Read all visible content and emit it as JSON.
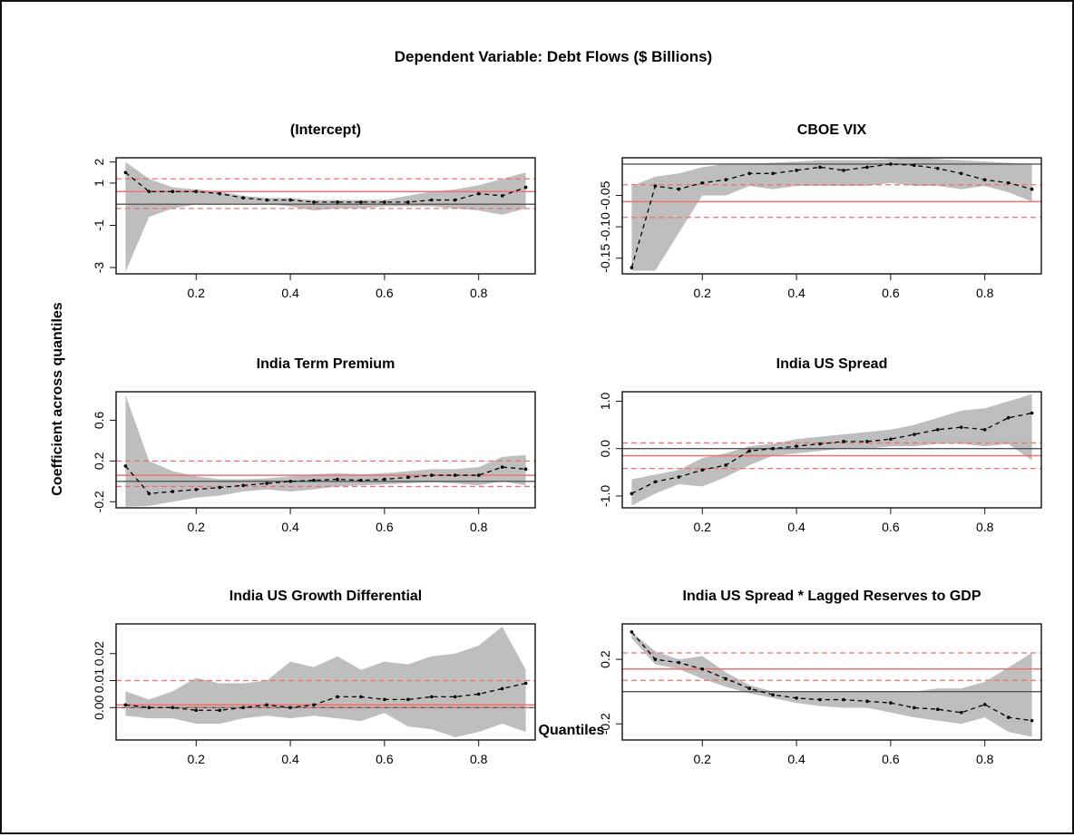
{
  "title": "Dependent Variable: Debt Flows ($ Billions)",
  "xlabel": "Quantiles",
  "ylabel": "Coefficient across quantiles",
  "colors": {
    "band": "#bebebe",
    "estimate": "#000000",
    "ols": "#f07070",
    "zero": "#555555",
    "frame": "#111111"
  },
  "chart_data": [
    {
      "type": "line",
      "title": "(Intercept)",
      "x": [
        0.05,
        0.1,
        0.15,
        0.2,
        0.25,
        0.3,
        0.35,
        0.4,
        0.45,
        0.5,
        0.55,
        0.6,
        0.65,
        0.7,
        0.75,
        0.8,
        0.85,
        0.9
      ],
      "series": [
        {
          "values": [
            1.5,
            0.6,
            0.6,
            0.6,
            0.5,
            0.3,
            0.2,
            0.2,
            0.1,
            0.1,
            0.1,
            0.1,
            0.1,
            0.2,
            0.2,
            0.5,
            0.4,
            0.8
          ]
        }
      ],
      "band_upper": [
        2.0,
        1.2,
        0.8,
        0.7,
        0.6,
        0.4,
        0.3,
        0.3,
        0.2,
        0.2,
        0.2,
        0.2,
        0.4,
        0.6,
        0.7,
        0.9,
        1.2,
        1.5
      ],
      "band_lower": [
        -3.2,
        -0.6,
        -0.2,
        0.0,
        0.0,
        0.0,
        0.0,
        -0.1,
        -0.3,
        -0.2,
        -0.2,
        -0.1,
        -0.1,
        -0.1,
        -0.2,
        -0.3,
        -0.5,
        -0.2
      ],
      "ols": 0.6,
      "ols_ci": [
        -0.2,
        1.2
      ],
      "ylim": [
        -3.3,
        2.2
      ],
      "yticks": [
        2,
        1,
        -1,
        -3
      ],
      "ytick_labels": [
        "2",
        "1",
        "-1",
        "-3"
      ],
      "xticks": [
        0.2,
        0.4,
        0.6,
        0.8
      ],
      "xtick_labels": [
        "0.2",
        "0.4",
        "0.6",
        "0.8"
      ]
    },
    {
      "type": "line",
      "title": "CBOE VIX",
      "x": [
        0.05,
        0.1,
        0.15,
        0.2,
        0.25,
        0.3,
        0.35,
        0.4,
        0.45,
        0.5,
        0.55,
        0.6,
        0.65,
        0.7,
        0.75,
        0.8,
        0.85,
        0.9
      ],
      "series": [
        {
          "values": [
            -0.165,
            -0.035,
            -0.04,
            -0.03,
            -0.025,
            -0.015,
            -0.015,
            -0.01,
            -0.005,
            -0.01,
            -0.005,
            0.0,
            -0.002,
            -0.007,
            -0.015,
            -0.025,
            -0.03,
            -0.04
          ]
        }
      ],
      "band_upper": [
        -0.035,
        -0.02,
        -0.015,
        -0.005,
        0.0,
        0.0,
        0.002,
        0.004,
        0.006,
        0.006,
        0.006,
        0.008,
        0.01,
        0.008,
        0.006,
        0.004,
        0.002,
        0.0
      ],
      "band_lower": [
        -0.17,
        -0.17,
        -0.11,
        -0.05,
        -0.05,
        -0.035,
        -0.04,
        -0.035,
        -0.035,
        -0.035,
        -0.035,
        -0.03,
        -0.035,
        -0.035,
        -0.04,
        -0.035,
        -0.045,
        -0.06
      ],
      "ols": -0.06,
      "ols_ci": [
        -0.085,
        -0.033
      ],
      "ylim": [
        -0.175,
        0.01
      ],
      "yticks": [
        -0.05,
        -0.1,
        -0.15
      ],
      "ytick_labels": [
        "-0.05",
        "-0.10",
        "-0.15"
      ],
      "xticks": [
        0.2,
        0.4,
        0.6,
        0.8
      ],
      "xtick_labels": [
        "0.2",
        "0.4",
        "0.6",
        "0.8"
      ]
    },
    {
      "type": "line",
      "title": "India Term Premium",
      "x": [
        0.05,
        0.1,
        0.15,
        0.2,
        0.25,
        0.3,
        0.35,
        0.4,
        0.45,
        0.5,
        0.55,
        0.6,
        0.65,
        0.7,
        0.75,
        0.8,
        0.85,
        0.9
      ],
      "series": [
        {
          "values": [
            0.15,
            -0.12,
            -0.1,
            -0.08,
            -0.06,
            -0.04,
            -0.02,
            0.0,
            0.01,
            0.02,
            0.01,
            0.02,
            0.04,
            0.06,
            0.06,
            0.06,
            0.14,
            0.12
          ]
        }
      ],
      "band_upper": [
        0.85,
        0.2,
        0.1,
        0.05,
        0.02,
        0.02,
        0.03,
        0.05,
        0.07,
        0.08,
        0.07,
        0.08,
        0.1,
        0.12,
        0.12,
        0.14,
        0.24,
        0.26
      ],
      "band_lower": [
        -0.25,
        -0.24,
        -0.2,
        -0.16,
        -0.14,
        -0.1,
        -0.08,
        -0.1,
        -0.08,
        -0.05,
        -0.04,
        -0.03,
        -0.02,
        -0.01,
        -0.02,
        -0.04,
        0.0,
        -0.04
      ],
      "ols": 0.06,
      "ols_ci": [
        -0.05,
        0.2
      ],
      "ylim": [
        -0.26,
        0.88
      ],
      "yticks": [
        0.6,
        0.2,
        -0.2
      ],
      "ytick_labels": [
        "0.6",
        "0.2",
        "-0.2"
      ],
      "xticks": [
        0.2,
        0.4,
        0.6,
        0.8
      ],
      "xtick_labels": [
        "0.2",
        "0.4",
        "0.6",
        "0.8"
      ]
    },
    {
      "type": "line",
      "title": "India US Spread",
      "x": [
        0.05,
        0.1,
        0.15,
        0.2,
        0.25,
        0.3,
        0.35,
        0.4,
        0.45,
        0.5,
        0.55,
        0.6,
        0.65,
        0.7,
        0.75,
        0.8,
        0.85,
        0.9
      ],
      "series": [
        {
          "values": [
            -0.95,
            -0.7,
            -0.6,
            -0.45,
            -0.35,
            -0.05,
            0.0,
            0.05,
            0.1,
            0.15,
            0.15,
            0.2,
            0.3,
            0.4,
            0.45,
            0.4,
            0.65,
            0.75
          ]
        }
      ],
      "band_upper": [
        -0.65,
        -0.55,
        -0.45,
        -0.2,
        -0.1,
        0.05,
        0.1,
        0.2,
        0.25,
        0.3,
        0.35,
        0.4,
        0.5,
        0.65,
        0.8,
        0.85,
        1.0,
        1.15
      ],
      "band_lower": [
        -1.2,
        -0.95,
        -0.75,
        -0.8,
        -0.6,
        -0.35,
        -0.15,
        -0.1,
        -0.05,
        0.0,
        0.0,
        0.05,
        0.05,
        0.1,
        0.1,
        0.05,
        0.1,
        -0.25
      ],
      "ols": -0.15,
      "ols_ci": [
        -0.42,
        0.12
      ],
      "ylim": [
        -1.25,
        1.2
      ],
      "yticks": [
        1.0,
        0.0,
        -1.0
      ],
      "ytick_labels": [
        "1.0",
        "0.0",
        "-1.0"
      ],
      "xticks": [
        0.2,
        0.4,
        0.6,
        0.8
      ],
      "xtick_labels": [
        "0.2",
        "0.4",
        "0.6",
        "0.8"
      ]
    },
    {
      "type": "line",
      "title": "India US Growth Differential",
      "x": [
        0.05,
        0.1,
        0.15,
        0.2,
        0.25,
        0.3,
        0.35,
        0.4,
        0.45,
        0.5,
        0.55,
        0.6,
        0.65,
        0.7,
        0.75,
        0.8,
        0.85,
        0.9
      ],
      "series": [
        {
          "values": [
            0.001,
            0.0,
            0.0,
            -0.001,
            -0.001,
            0.0,
            0.001,
            0.0,
            0.001,
            0.004,
            0.004,
            0.003,
            0.003,
            0.004,
            0.004,
            0.005,
            0.007,
            0.009
          ]
        }
      ],
      "band_upper": [
        0.006,
        0.003,
        0.006,
        0.011,
        0.009,
        0.009,
        0.01,
        0.017,
        0.015,
        0.019,
        0.014,
        0.017,
        0.016,
        0.019,
        0.02,
        0.023,
        0.03,
        0.014
      ],
      "band_lower": [
        -0.003,
        -0.004,
        -0.004,
        -0.006,
        -0.006,
        -0.004,
        -0.003,
        -0.004,
        -0.003,
        -0.004,
        -0.005,
        -0.002,
        -0.007,
        -0.008,
        -0.011,
        -0.009,
        -0.006,
        -0.009
      ],
      "ols": 0.001,
      "ols_ci": [
        0.0,
        0.01
      ],
      "ylim": [
        -0.012,
        0.031
      ],
      "yticks": [
        0.02,
        0.01,
        0.0
      ],
      "ytick_labels": [
        "0.02",
        "0.01",
        "0.00"
      ],
      "xticks": [
        0.2,
        0.4,
        0.6,
        0.8
      ],
      "xtick_labels": [
        "0.2",
        "0.4",
        "0.6",
        "0.8"
      ]
    },
    {
      "type": "line",
      "title": "India US Spread * Lagged Reserves to GDP",
      "x": [
        0.05,
        0.1,
        0.15,
        0.2,
        0.25,
        0.3,
        0.35,
        0.4,
        0.45,
        0.5,
        0.55,
        0.6,
        0.65,
        0.7,
        0.75,
        0.8,
        0.85,
        0.9
      ],
      "series": [
        {
          "values": [
            0.37,
            0.2,
            0.18,
            0.14,
            0.08,
            0.02,
            -0.02,
            -0.04,
            -0.05,
            -0.05,
            -0.06,
            -0.07,
            -0.1,
            -0.11,
            -0.13,
            -0.08,
            -0.16,
            -0.18
          ]
        }
      ],
      "band_upper": [
        0.37,
        0.25,
        0.2,
        0.22,
        0.12,
        0.04,
        0.0,
        0.0,
        0.0,
        0.0,
        0.0,
        0.0,
        0.0,
        0.02,
        0.02,
        0.06,
        0.15,
        0.24
      ],
      "band_lower": [
        0.33,
        0.17,
        0.14,
        0.08,
        0.03,
        -0.01,
        -0.04,
        -0.07,
        -0.09,
        -0.1,
        -0.1,
        -0.13,
        -0.16,
        -0.18,
        -0.2,
        -0.16,
        -0.25,
        -0.28
      ],
      "ols": 0.14,
      "ols_ci": [
        0.07,
        0.24
      ],
      "ylim": [
        -0.3,
        0.42
      ],
      "yticks": [
        0.2,
        -0.2
      ],
      "ytick_labels": [
        "0.2",
        "-0.2"
      ],
      "xticks": [
        0.2,
        0.4,
        0.6,
        0.8
      ],
      "xtick_labels": [
        "0.2",
        "0.4",
        "0.6",
        "0.8"
      ]
    }
  ]
}
